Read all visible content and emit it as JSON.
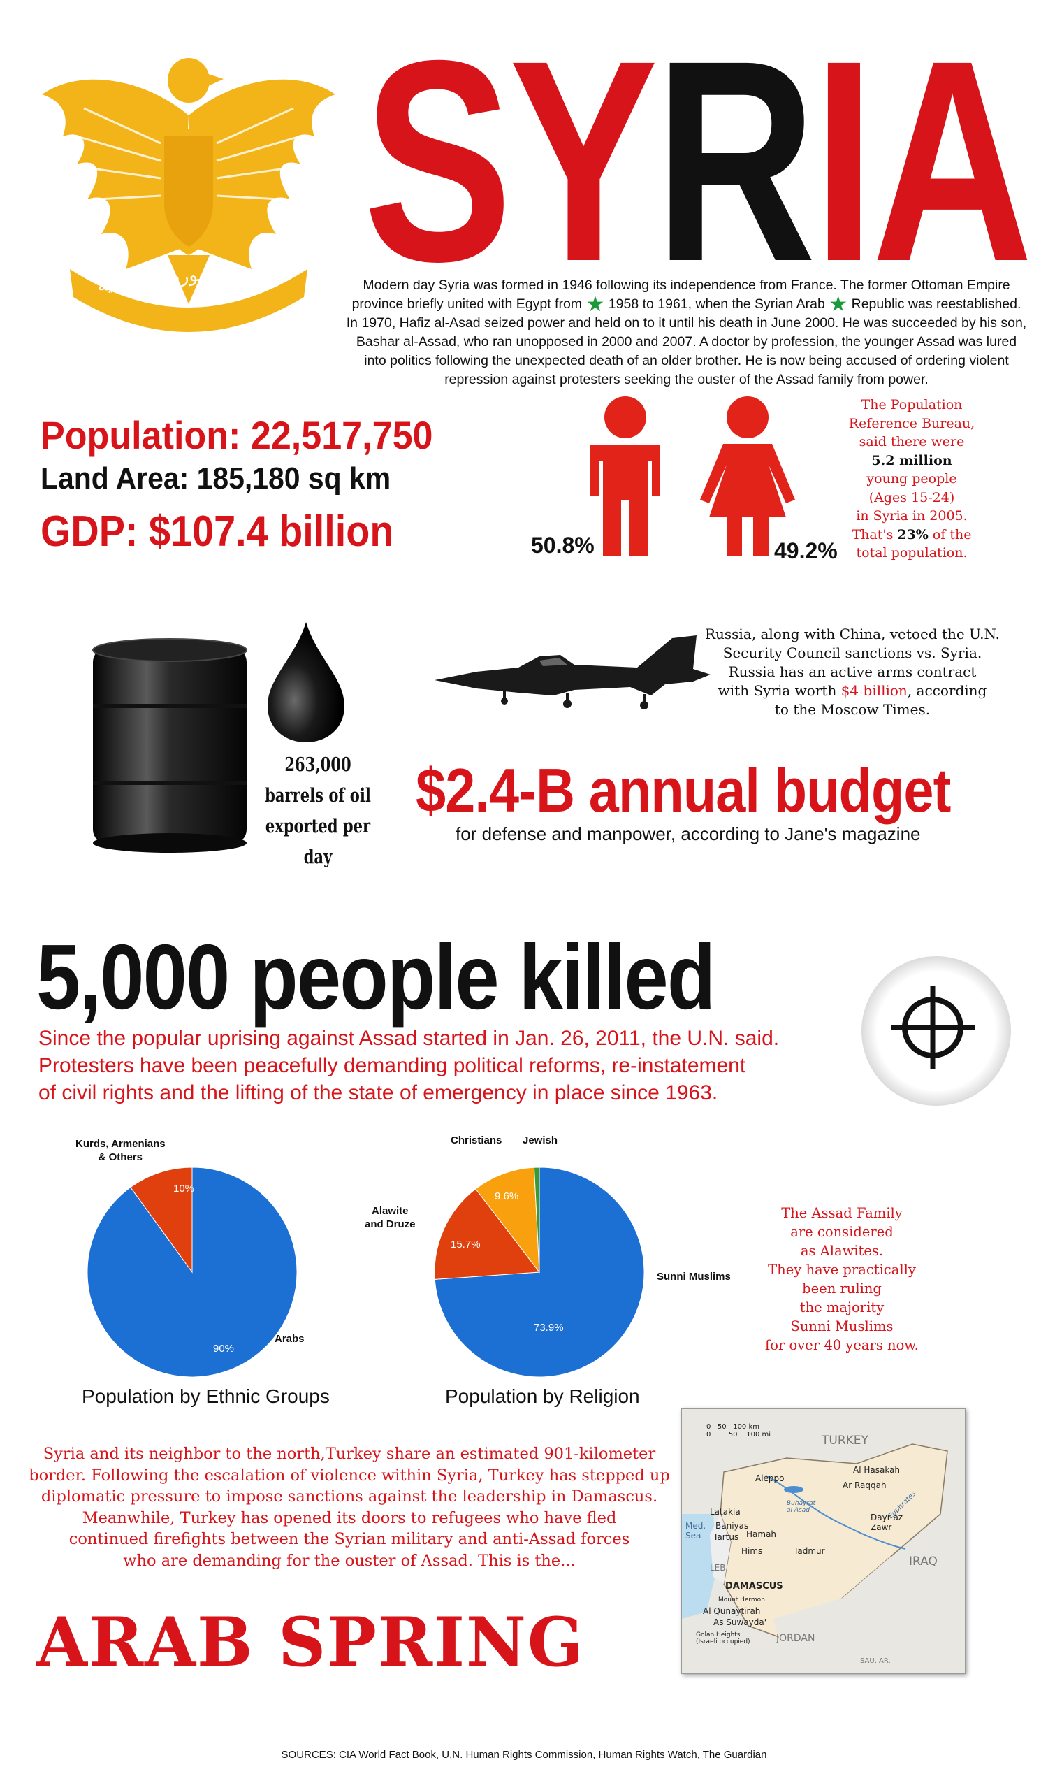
{
  "title": {
    "letters": [
      "S",
      "Y",
      "R",
      "I",
      "A"
    ],
    "colors": [
      "#d7141a",
      "#d7141a",
      "#111111",
      "#d7141a",
      "#d7141a"
    ]
  },
  "emblem": {
    "arabic_text": "اتحاد الجمهوريات العربية",
    "color": "#f2b418"
  },
  "intro": {
    "p1": "Modern day Syria was formed in 1946 following its independence from France. The former Ottoman Empire province briefly united with Egypt from",
    "p2": "1958 to 1961, when the Syrian Arab",
    "p3": "Republic was reestablished. In 1970, Hafiz al-Asad seized power and held on to it until his death in June 2000. He was succeeded by his son, Bashar al-Assad, who ran unopposed in 2000 and 2007. A doctor by profession, the younger Assad was lured into politics following the unexpected death of an older brother. He is now being accused of ordering violent repression against protesters seeking the ouster of the Assad family from power.",
    "star_color": "#1a9a3a"
  },
  "stats": {
    "population": "Population: 22,517,750",
    "land_area": "Land Area: 185,180 sq km",
    "gdp": "GDP: $107.4 billion"
  },
  "gender": {
    "male_pct": "50.8%",
    "female_pct": "49.2%",
    "icon_color": "#e2231a"
  },
  "young_people": {
    "l1": "The Population",
    "l2": "Reference Bureau,",
    "l3": "said there were",
    "l4": "5.2 million",
    "l5": "young people",
    "l6": "(Ages 15-24)",
    "l7": "in Syria in 2005.",
    "l8a": "That's ",
    "l8b": "23%",
    "l8c": " of the",
    "l9": "total population."
  },
  "oil": {
    "l1": "263,000",
    "l2": "barrels of oil",
    "l3": "exported per day"
  },
  "russia": {
    "l1": "Russia,  along with China, vetoed the U.N.",
    "l2": "Security Council sanctions vs. Syria.",
    "l3": "Russia has an active arms contract",
    "l4a": "with Syria worth ",
    "l4b": "$4 billion",
    "l4c": ", according",
    "l5": "to the Moscow Times."
  },
  "budget": {
    "headline": "$2.4-B annual budget",
    "sub": "for defense and manpower, according to Jane's magazine"
  },
  "killed": {
    "headline": "5,000 people killed",
    "l1": "Since the popular uprising against Assad started in Jan. 26, 2011, the U.N. said.",
    "l2": "Protesters have been peacefully demanding political reforms, re-instatement",
    "l3": "of civil rights and the lifting of the state of emergency in place since 1963."
  },
  "chart_data": [
    {
      "type": "pie",
      "title": "Population by Ethnic Groups",
      "labels": [
        "Arabs",
        "Kurds, Armenians & Others"
      ],
      "values": [
        90,
        10
      ],
      "value_labels": [
        "90%",
        "10%"
      ],
      "colors": [
        "#1c6fd3",
        "#e0400e"
      ]
    },
    {
      "type": "pie",
      "title": "Population by Religion",
      "labels": [
        "Sunni Muslims",
        "Alawite and Druze",
        "Christians",
        "Jewish"
      ],
      "values": [
        73.9,
        15.7,
        9.6,
        0.8
      ],
      "value_labels": [
        "73.9%",
        "15.7%",
        "9.6%",
        ""
      ],
      "colors": [
        "#1c6fd3",
        "#e0400e",
        "#f8a00d",
        "#3a9b2b"
      ]
    }
  ],
  "pie_labels": {
    "kurds_l1": "Kurds, Armenians",
    "kurds_l2": "& Others",
    "arabs": "Arabs",
    "christians": "Christians",
    "jewish": "Jewish",
    "alawite_l1": "Alawite",
    "alawite_l2": "and Druze",
    "sunni": "Sunni Muslims"
  },
  "assad": {
    "l1": "The Assad Family",
    "l2": "are considered",
    "l3": "as Alawites.",
    "l4": "They have practically",
    "l5": "been ruling",
    "l6": "the majority",
    "l7": "Sunni Muslims",
    "l8": "for over 40 years now."
  },
  "turkey": {
    "l1": "Syria and its neighbor to the north,Turkey share an estimated 901-kilometer",
    "l2": "border. Following the  escalation of violence within Syria, Turkey has stepped up",
    "l3": "diplomatic pressure to impose  sanctions against  the leadership in Damascus.",
    "l4": "Meanwhile, Turkey has opened its doors to refugees who have fled",
    "l5": "continued firefights between the Syrian military and anti-Assad forces",
    "l6": "who are demanding for the ouster of Assad. This is the..."
  },
  "arab_spring": "ARAB SPRING",
  "map": {
    "scale_0": "0",
    "scale_50": "50",
    "scale_100": "100 km",
    "scale_mi_50": "50",
    "scale_mi": "100 mi",
    "turkey": "TURKEY",
    "iraq": "IRAQ",
    "jordan": "JORDAN",
    "leb": "LEB.",
    "sau": "SAU. AR.",
    "med": "Med.",
    "sea": "Sea",
    "aleppo": "Aleppo",
    "hasakah": "Al Hasakah",
    "raqqah": "Ar Raqqah",
    "buhayrat1": "Buhayrat",
    "buhayrat2": "al Asad",
    "latakia": "Latakia",
    "baniyas": "Baniyas",
    "tartus": "Tartus",
    "hamah": "Hamah",
    "hims": "Hims",
    "tadmur": "Tadmur",
    "dayr1": "Dayr az",
    "dayr2": "Zawr",
    "euphrates": "Euphrates",
    "damascus": "DAMASCUS",
    "hermon": "Mount Hermon",
    "qunaytirah": "Al Qunaytirah",
    "suwayda": "As Suwayda'",
    "golan1": "Golan Heights",
    "golan2": "(Israeli occupied)",
    "land_color": "#f7ead3",
    "water_color": "#bcdcf0"
  },
  "sources": "SOURCES: CIA World Fact Book, U.N. Human Rights Commission, Human Rights Watch, The Guardian"
}
